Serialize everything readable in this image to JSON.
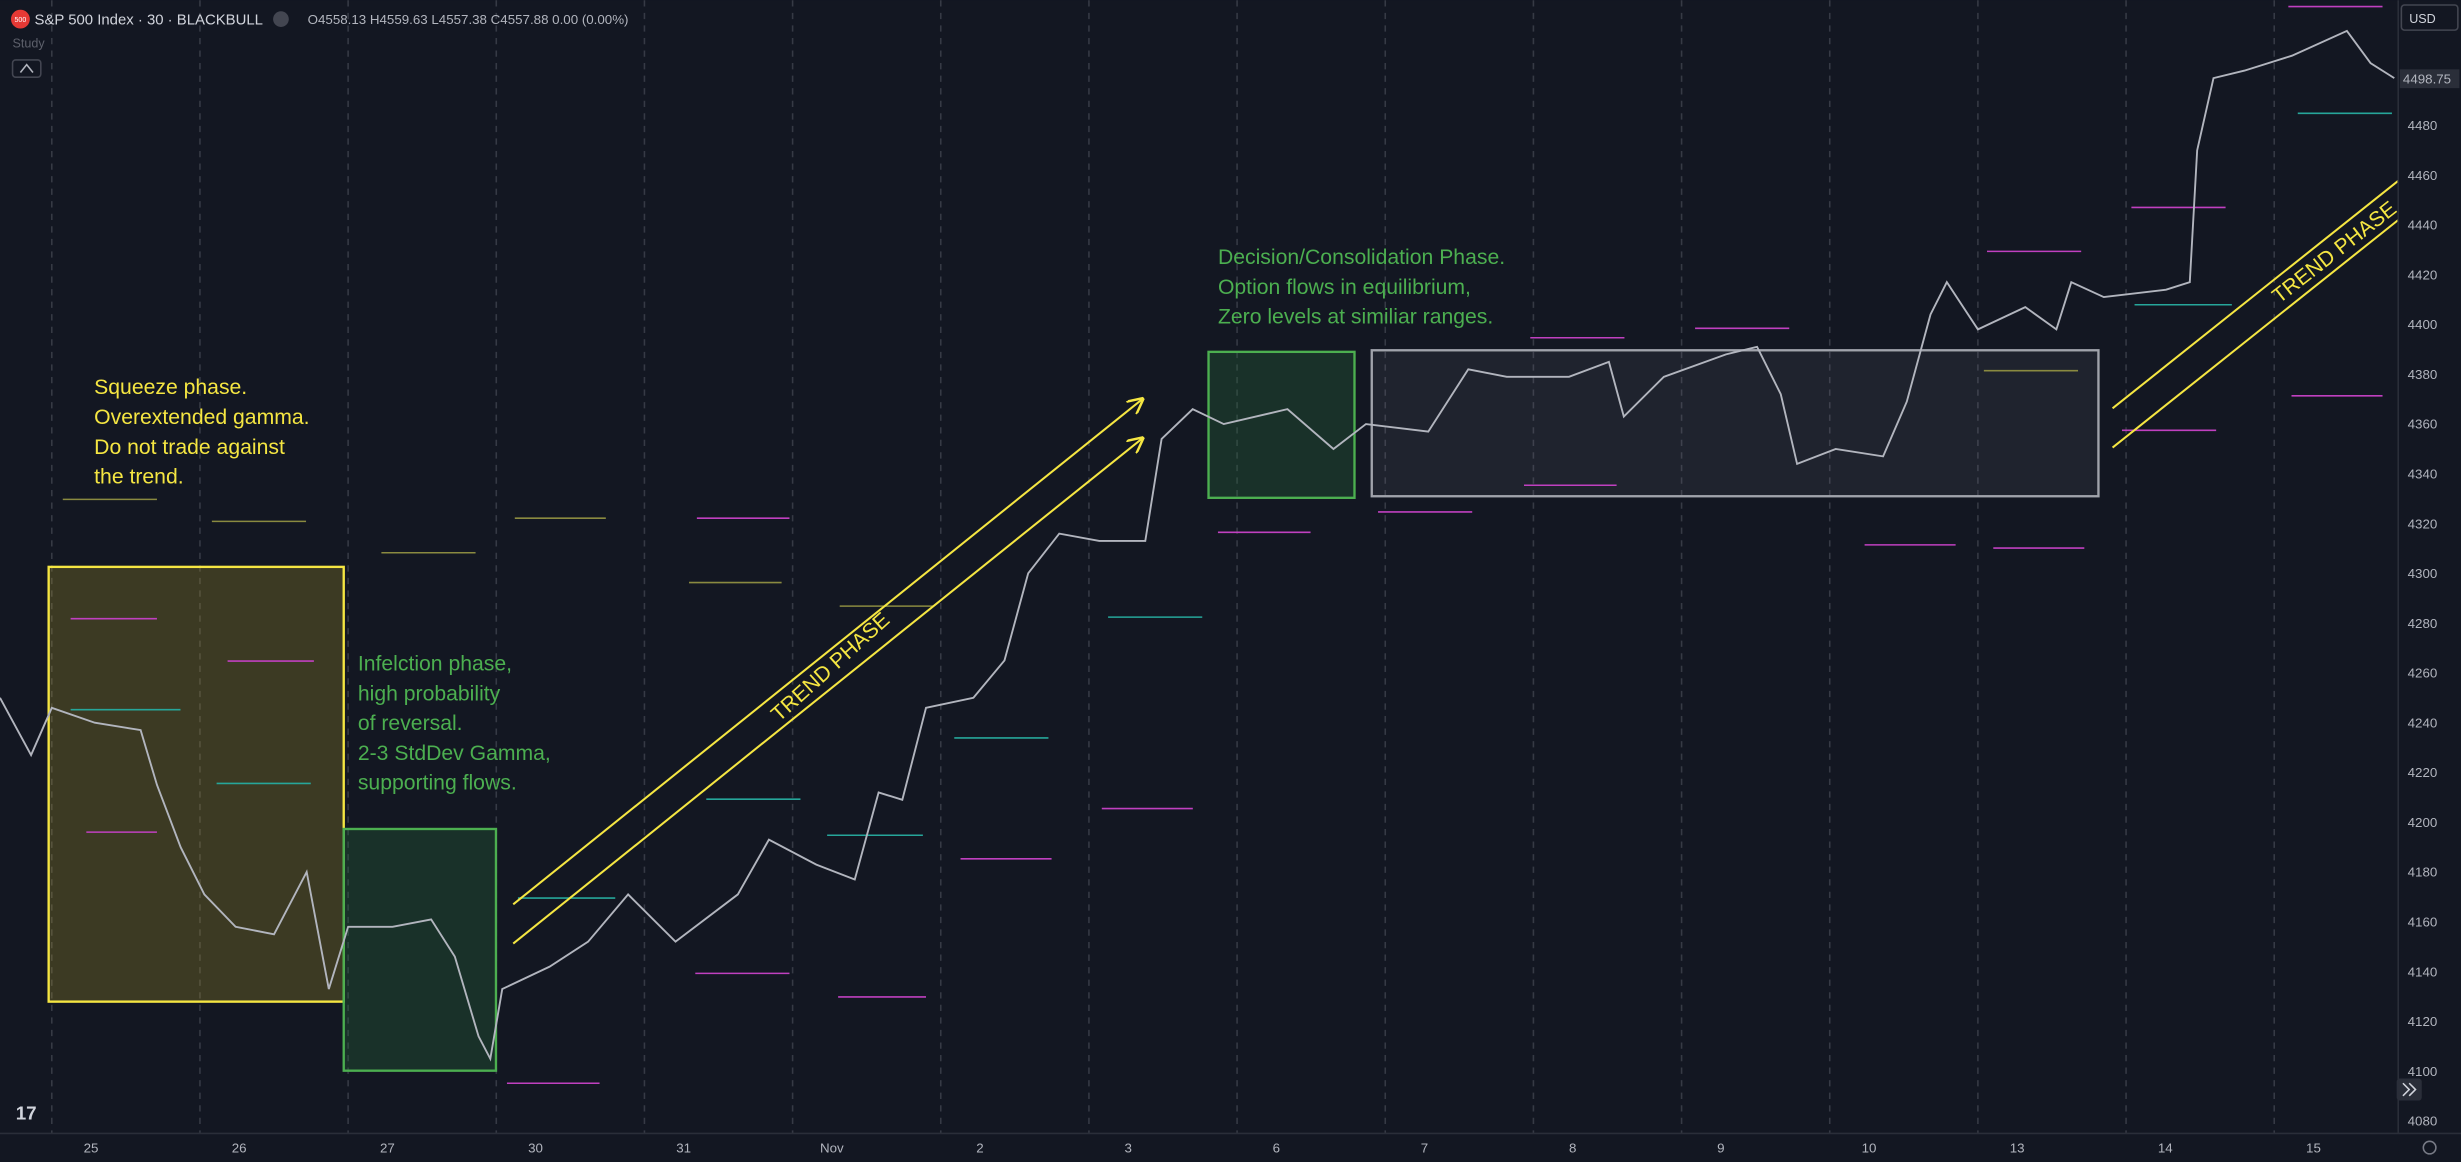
{
  "header": {
    "badge": "500",
    "symbol": "S&P 500 Index · 30 · BLACKBULL",
    "ohlc": "O4558.13 H4559.63 L4557.38 C4557.88 0.00 (0.00%)",
    "study": "Study",
    "currency": "USD"
  },
  "price_axis": {
    "ticks": [
      4080,
      4100,
      4120,
      4140,
      4160,
      4180,
      4200,
      4220,
      4240,
      4260,
      4280,
      4300,
      4320,
      4340,
      4360,
      4380,
      4400,
      4420,
      4440,
      4460,
      4480
    ],
    "last_price": 4498.75
  },
  "time_axis": {
    "labels": [
      "25",
      "26",
      "27",
      "30",
      "31",
      "Nov",
      "2",
      "3",
      "6",
      "7",
      "8",
      "9",
      "10",
      "13",
      "14",
      "15"
    ]
  },
  "price": {
    "x": [
      -0.35,
      -0.14,
      0,
      0.29,
      0.6,
      0.71,
      0.87,
      1.03,
      1.24,
      1.5,
      1.72,
      1.87,
      2.0,
      2.3,
      2.56,
      2.72,
      2.88,
      2.96,
      3.04,
      3.36,
      3.62,
      3.89,
      4.21,
      4.63,
      4.84,
      5.16,
      5.42,
      5.58,
      5.74,
      5.9,
      6.22,
      6.43,
      6.59,
      6.8,
      7.07,
      7.38,
      7.49,
      7.7,
      7.91,
      8.34,
      8.65,
      8.87,
      9.29,
      9.56,
      9.82,
      10.24,
      10.51,
      10.61,
      10.88,
      11.3,
      11.51,
      11.67,
      11.78,
      12.04,
      12.36,
      12.52,
      12.68,
      12.79,
      13.0,
      13.32,
      13.53,
      13.63,
      13.85,
      14.27,
      14.43,
      14.48,
      14.59,
      14.8,
      15.12,
      15.49,
      15.65,
      15.81
    ],
    "values": [
      4250,
      4227,
      4246,
      4240,
      4237,
      4215,
      4190,
      4171,
      4158,
      4155,
      4180,
      4133,
      4158,
      4158,
      4161,
      4146,
      4114,
      4105,
      4133,
      4142,
      4152,
      4171,
      4152,
      4171,
      4193,
      4183,
      4177,
      4212,
      4209,
      4246,
      4250,
      4265,
      4300,
      4316,
      4313,
      4313,
      4354,
      4366,
      4360,
      4366,
      4350,
      4360,
      4357,
      4382,
      4379,
      4379,
      4385,
      4363,
      4379,
      4388,
      4391,
      4372,
      4344,
      4350,
      4347,
      4369,
      4404,
      4417,
      4398,
      4407,
      4398,
      4417,
      4411,
      4414,
      4417,
      4470,
      4499,
      4502,
      4508,
      4518,
      4505,
      4499
    ]
  },
  "annotations": {
    "squeeze": [
      "Squeeze phase.",
      "Overextended gamma.",
      "Do not trade against",
      "the trend."
    ],
    "inflection": [
      "Infelction phase,",
      "high probability",
      "of reversal.",
      "2-3 StdDev Gamma,",
      "supporting flows."
    ],
    "decision": [
      "Decision/Consolidation Phase.",
      "Option flows in equilibrium,",
      "Zero levels at similiar ranges."
    ],
    "trend_1": "TREND PHASE",
    "trend_2": "TREND PHASE"
  }
}
